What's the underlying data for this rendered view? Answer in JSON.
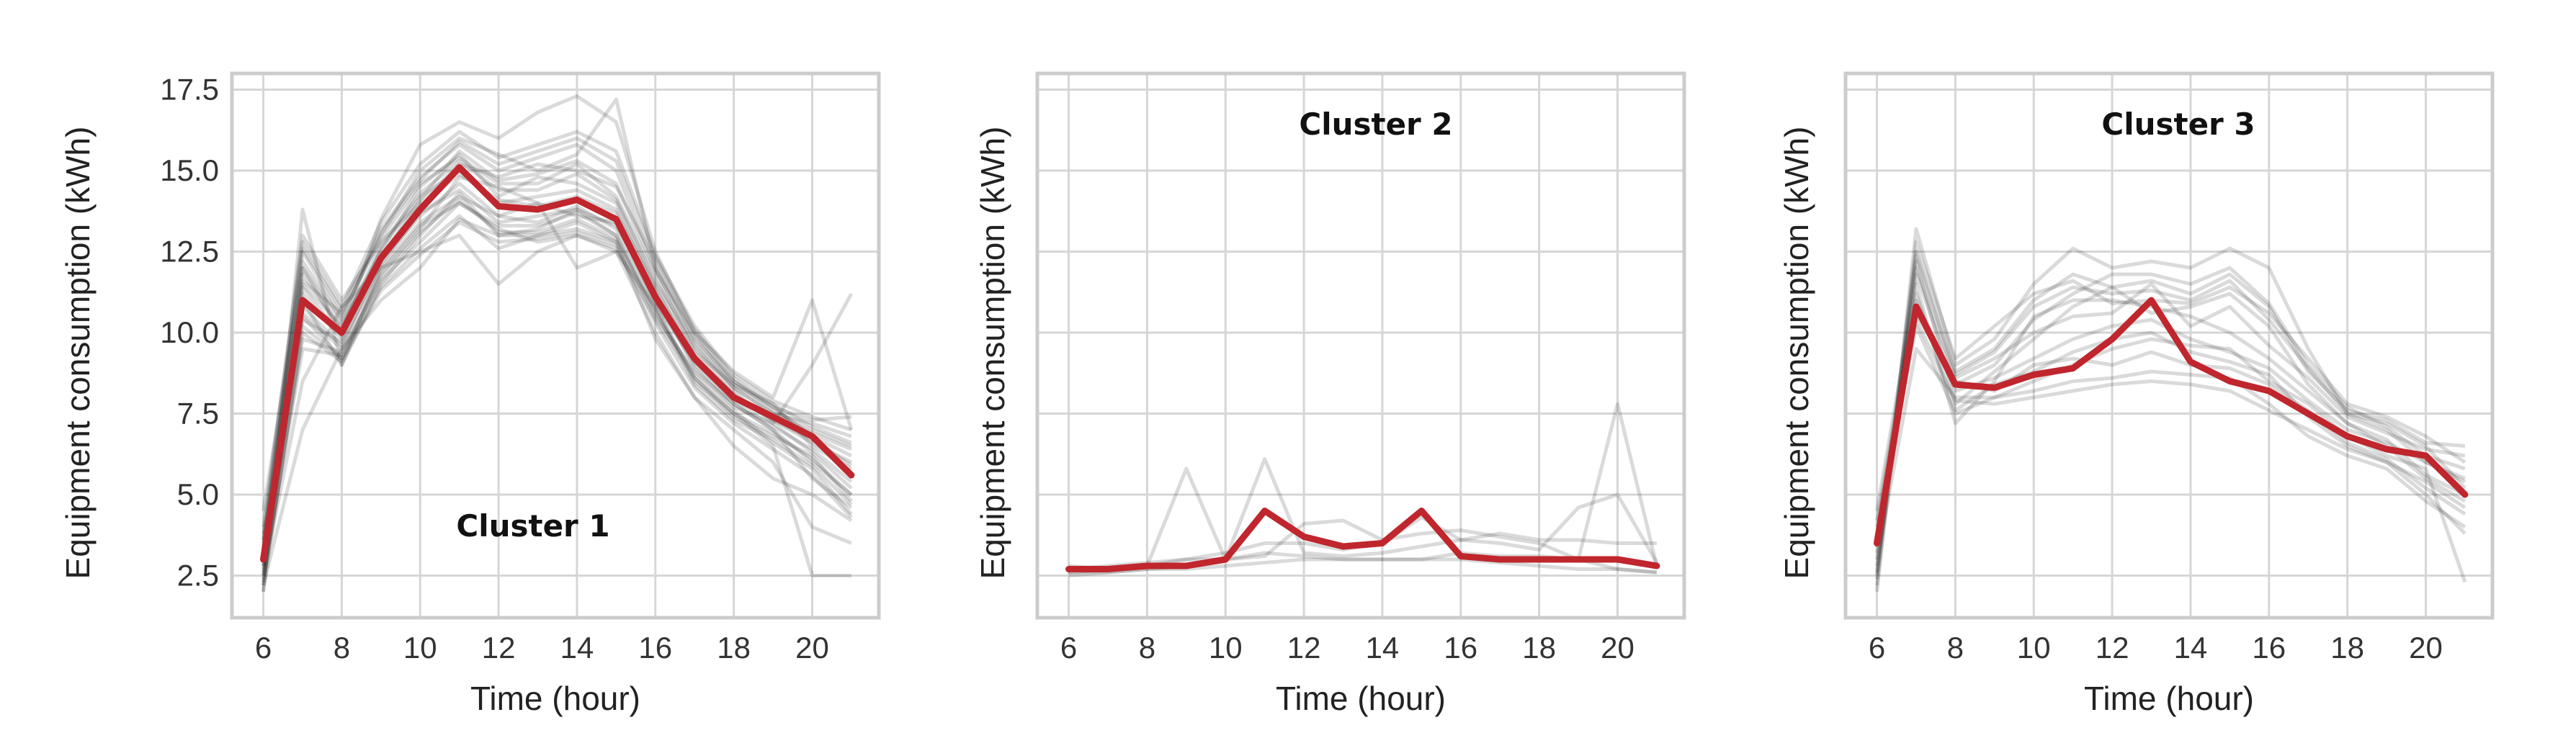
{
  "colors": {
    "centroid": "#c0262d",
    "members": "#1a1a1a",
    "grid": "#d6d6d6",
    "frame": "#cccccc"
  },
  "chart_data": [
    {
      "type": "line",
      "title": "Cluster 1",
      "xlabel": "Time (hour)",
      "ylabel": "Equipment consumption (kWh)",
      "x": [
        6,
        7,
        8,
        9,
        10,
        11,
        12,
        13,
        14,
        15,
        16,
        17,
        18,
        19,
        20,
        21
      ],
      "xlim": [
        5.2,
        21.7
      ],
      "ylim": [
        1.2,
        18.0
      ],
      "xticks": [
        6,
        8,
        10,
        12,
        14,
        16,
        18,
        20
      ],
      "yticks": [
        2.5,
        5.0,
        7.5,
        10.0,
        12.5,
        15.0,
        17.5
      ],
      "ytick_labels": [
        "2.5",
        "5.0",
        "7.5",
        "10.0",
        "12.5",
        "15.0",
        "17.5"
      ],
      "grid": true,
      "series": [
        {
          "role": "centroid",
          "values": [
            3.0,
            11.0,
            10.0,
            12.3,
            13.8,
            15.1,
            13.9,
            13.8,
            14.1,
            13.5,
            11.1,
            9.2,
            8.0,
            7.4,
            6.8,
            5.6
          ]
        },
        {
          "role": "member",
          "values": [
            2.0,
            13.8,
            9.0,
            11.5,
            13.0,
            14.3,
            13.0,
            13.2,
            13.8,
            13.0,
            10.5,
            8.8,
            7.8,
            7.0,
            5.5,
            4.6
          ]
        },
        {
          "role": "member",
          "values": [
            3.5,
            12.5,
            10.5,
            13.0,
            15.0,
            16.0,
            15.5,
            15.0,
            15.5,
            17.2,
            12.0,
            10.0,
            8.5,
            7.8,
            6.5,
            5.8
          ]
        },
        {
          "role": "member",
          "values": [
            2.5,
            8.5,
            10.8,
            12.0,
            12.5,
            13.0,
            11.5,
            12.5,
            13.0,
            12.5,
            10.0,
            8.0,
            7.0,
            6.0,
            4.0,
            3.5
          ]
        },
        {
          "role": "member",
          "values": [
            4.5,
            12.0,
            10.0,
            13.5,
            15.8,
            16.5,
            16.0,
            16.8,
            17.3,
            16.5,
            12.5,
            10.0,
            8.8,
            8.0,
            11.0,
            7.0
          ]
        },
        {
          "role": "member",
          "values": [
            2.8,
            10.5,
            9.2,
            11.8,
            13.2,
            14.8,
            14.5,
            14.0,
            12.0,
            12.5,
            10.8,
            8.5,
            7.5,
            6.5,
            2.5,
            2.5
          ]
        },
        {
          "role": "member",
          "values": [
            3.2,
            11.5,
            10.2,
            12.5,
            14.5,
            15.5,
            14.2,
            14.8,
            14.6,
            14.0,
            11.5,
            9.5,
            8.2,
            7.2,
            9.0,
            11.2
          ]
        },
        {
          "role": "member",
          "values": [
            2.2,
            7.0,
            9.5,
            11.0,
            12.0,
            13.5,
            13.0,
            13.0,
            13.2,
            12.8,
            9.8,
            8.0,
            6.5,
            5.5,
            5.0,
            4.2
          ]
        },
        {
          "role": "member",
          "values": [
            3.8,
            13.0,
            11.0,
            12.8,
            14.0,
            15.2,
            14.8,
            15.2,
            15.0,
            14.5,
            12.2,
            9.8,
            8.5,
            7.6,
            7.0,
            6.5
          ]
        },
        {
          "role": "member",
          "values": [
            2.6,
            10.8,
            9.6,
            12.2,
            13.6,
            14.6,
            13.6,
            13.4,
            13.9,
            13.2,
            11.0,
            9.0,
            7.8,
            7.0,
            6.0,
            5.0
          ]
        },
        {
          "role": "member",
          "values": [
            3.0,
            11.2,
            9.8,
            12.6,
            14.2,
            15.0,
            14.0,
            14.2,
            14.4,
            13.8,
            11.3,
            9.3,
            8.1,
            7.3,
            6.6,
            6.0
          ]
        },
        {
          "role": "member",
          "values": [
            2.4,
            9.8,
            9.4,
            11.6,
            12.8,
            14.0,
            13.2,
            12.8,
            13.0,
            12.6,
            10.4,
            8.6,
            7.4,
            6.8,
            6.2,
            4.8
          ]
        },
        {
          "role": "member",
          "values": [
            3.4,
            12.2,
            10.4,
            13.2,
            14.8,
            15.8,
            15.0,
            15.4,
            15.8,
            15.0,
            12.0,
            9.6,
            8.3,
            7.5,
            7.2,
            6.8
          ]
        },
        {
          "role": "member",
          "values": [
            2.2,
            11.0,
            9.0,
            12.0,
            13.4,
            14.2,
            13.6,
            14.0,
            13.6,
            13.4,
            10.9,
            9.1,
            7.9,
            7.1,
            6.4,
            5.4
          ]
        },
        {
          "role": "member",
          "values": [
            3.6,
            11.6,
            10.6,
            12.9,
            14.6,
            15.4,
            14.6,
            14.6,
            15.2,
            14.2,
            11.8,
            9.4,
            8.4,
            7.7,
            6.8,
            6.2
          ]
        },
        {
          "role": "member",
          "values": [
            2.0,
            10.2,
            9.2,
            11.4,
            12.6,
            13.6,
            12.6,
            13.0,
            13.4,
            12.8,
            10.6,
            8.7,
            7.6,
            6.6,
            5.8,
            4.4
          ]
        },
        {
          "role": "member",
          "values": [
            4.0,
            12.8,
            10.8,
            13.4,
            15.2,
            16.2,
            15.4,
            15.8,
            16.2,
            15.6,
            12.4,
            10.2,
            8.7,
            7.9,
            7.4,
            7.0
          ]
        },
        {
          "role": "member",
          "values": [
            2.8,
            10.4,
            9.7,
            12.1,
            13.7,
            14.4,
            13.4,
            13.6,
            13.8,
            13.3,
            11.2,
            8.9,
            7.7,
            7.2,
            6.3,
            5.2
          ]
        },
        {
          "role": "member",
          "values": [
            3.3,
            11.8,
            10.1,
            12.7,
            14.3,
            15.3,
            14.4,
            14.4,
            14.9,
            14.1,
            11.6,
            9.7,
            8.3,
            7.5,
            6.9,
            6.4
          ]
        },
        {
          "role": "member",
          "values": [
            2.5,
            9.5,
            9.3,
            11.7,
            13.1,
            14.1,
            13.1,
            13.1,
            13.5,
            12.9,
            10.7,
            8.4,
            7.3,
            6.7,
            5.9,
            4.7
          ]
        },
        {
          "role": "member",
          "values": [
            3.1,
            12.0,
            10.3,
            12.4,
            13.9,
            14.9,
            14.1,
            13.9,
            14.2,
            13.7,
            11.4,
            9.2,
            8.0,
            7.3,
            6.7,
            5.9
          ]
        },
        {
          "role": "member",
          "values": [
            2.7,
            11.4,
            9.9,
            12.3,
            14.1,
            15.6,
            14.7,
            14.9,
            15.3,
            14.6,
            11.9,
            9.9,
            8.4,
            7.8,
            7.1,
            6.6
          ]
        },
        {
          "role": "member",
          "values": [
            2.9,
            10.6,
            9.5,
            11.9,
            13.3,
            14.0,
            13.3,
            13.3,
            13.7,
            13.0,
            10.8,
            8.6,
            7.5,
            6.9,
            6.1,
            5.0
          ]
        },
        {
          "role": "member",
          "values": [
            3.6,
            12.6,
            10.7,
            13.1,
            14.7,
            15.9,
            15.2,
            15.6,
            16.0,
            15.3,
            12.3,
            10.1,
            8.6,
            7.7,
            7.3,
            7.4
          ]
        },
        {
          "role": "member",
          "values": [
            2.3,
            10.0,
            9.1,
            11.3,
            12.4,
            13.4,
            12.8,
            12.9,
            13.1,
            12.7,
            10.3,
            8.3,
            7.2,
            6.4,
            5.6,
            4.3
          ]
        }
      ]
    },
    {
      "type": "line",
      "title": "Cluster 2",
      "xlabel": "Time (hour)",
      "ylabel": "Equipment consumption (kWh)",
      "x": [
        6,
        7,
        8,
        9,
        10,
        11,
        12,
        13,
        14,
        15,
        16,
        17,
        18,
        19,
        20,
        21
      ],
      "xlim": [
        5.2,
        21.7
      ],
      "ylim": [
        1.2,
        18.0
      ],
      "xticks": [
        6,
        8,
        10,
        12,
        14,
        16,
        18,
        20
      ],
      "yticks": [
        2.5,
        5.0,
        7.5,
        10.0,
        12.5,
        15.0,
        17.5
      ],
      "ytick_labels": [],
      "grid": true,
      "series": [
        {
          "role": "centroid",
          "values": [
            2.7,
            2.7,
            2.8,
            2.8,
            3.0,
            4.5,
            3.7,
            3.4,
            3.5,
            4.5,
            3.1,
            3.0,
            3.0,
            3.0,
            3.0,
            2.8
          ]
        },
        {
          "role": "member",
          "values": [
            2.8,
            2.7,
            2.8,
            5.8,
            3.0,
            3.2,
            3.1,
            3.0,
            3.0,
            3.0,
            3.2,
            3.1,
            3.1,
            3.0,
            7.8,
            2.8
          ]
        },
        {
          "role": "member",
          "values": [
            2.6,
            2.7,
            2.8,
            3.0,
            3.0,
            6.1,
            3.2,
            3.1,
            3.2,
            3.4,
            3.6,
            3.5,
            3.3,
            4.6,
            5.0,
            2.9
          ]
        },
        {
          "role": "member",
          "values": [
            2.5,
            2.6,
            2.7,
            2.8,
            3.0,
            3.1,
            4.1,
            4.2,
            3.6,
            3.8,
            3.9,
            3.7,
            3.5,
            3.0,
            2.7,
            2.6
          ]
        },
        {
          "role": "member",
          "values": [
            2.7,
            2.8,
            2.9,
            3.0,
            3.2,
            3.5,
            3.5,
            3.3,
            3.5,
            4.3,
            3.6,
            3.8,
            3.6,
            3.6,
            3.5,
            3.5
          ]
        },
        {
          "role": "member",
          "values": [
            2.6,
            2.6,
            2.7,
            2.7,
            2.8,
            2.9,
            3.0,
            3.0,
            3.0,
            3.0,
            3.0,
            2.9,
            2.8,
            2.7,
            2.7,
            2.6
          ]
        }
      ]
    },
    {
      "type": "line",
      "title": "Cluster 3",
      "xlabel": "Time (hour)",
      "ylabel": "Equipment consumption (kWh)",
      "x": [
        6,
        7,
        8,
        9,
        10,
        11,
        12,
        13,
        14,
        15,
        16,
        17,
        18,
        19,
        20,
        21
      ],
      "xlim": [
        5.2,
        21.7
      ],
      "ylim": [
        1.2,
        18.0
      ],
      "xticks": [
        6,
        8,
        10,
        12,
        14,
        16,
        18,
        20
      ],
      "yticks": [
        2.5,
        5.0,
        7.5,
        10.0,
        12.5,
        15.0,
        17.5
      ],
      "ytick_labels": [],
      "grid": true,
      "series": [
        {
          "role": "centroid",
          "values": [
            3.5,
            10.8,
            8.4,
            8.3,
            8.7,
            8.9,
            9.8,
            11.0,
            9.1,
            8.5,
            8.2,
            7.5,
            6.8,
            6.4,
            6.2,
            5.0
          ]
        },
        {
          "role": "member",
          "values": [
            2.0,
            13.2,
            9.0,
            9.8,
            11.5,
            12.6,
            12.0,
            12.2,
            12.0,
            12.6,
            12.0,
            9.5,
            7.5,
            7.0,
            6.0,
            5.5
          ]
        },
        {
          "role": "member",
          "values": [
            4.5,
            11.5,
            7.2,
            8.5,
            10.5,
            11.0,
            11.0,
            10.8,
            10.5,
            10.0,
            9.2,
            8.2,
            7.2,
            6.5,
            5.5,
            4.8
          ]
        },
        {
          "role": "member",
          "values": [
            3.0,
            9.5,
            8.0,
            8.0,
            8.5,
            9.0,
            9.5,
            9.8,
            9.6,
            9.5,
            8.5,
            7.8,
            6.8,
            6.2,
            5.8,
            2.3
          ]
        },
        {
          "role": "member",
          "values": [
            2.5,
            12.5,
            8.8,
            9.5,
            11.0,
            11.8,
            11.4,
            11.6,
            11.2,
            11.8,
            10.8,
            8.8,
            7.6,
            7.3,
            6.6,
            6.5
          ]
        },
        {
          "role": "member",
          "values": [
            3.8,
            10.2,
            7.5,
            8.0,
            8.2,
            8.5,
            8.6,
            8.8,
            8.7,
            8.6,
            7.8,
            6.8,
            6.2,
            5.8,
            4.8,
            4.0
          ]
        },
        {
          "role": "member",
          "values": [
            2.2,
            12.0,
            8.6,
            9.2,
            10.0,
            10.5,
            10.6,
            11.5,
            10.2,
            10.8,
            9.6,
            8.6,
            7.4,
            6.9,
            6.4,
            6.2
          ]
        },
        {
          "role": "member",
          "values": [
            4.0,
            11.0,
            8.2,
            8.6,
            9.2,
            9.8,
            10.2,
            10.4,
            9.8,
            9.4,
            8.9,
            7.9,
            7.0,
            6.6,
            6.0,
            5.4
          ]
        },
        {
          "role": "member",
          "values": [
            2.8,
            12.2,
            7.8,
            8.8,
            9.8,
            10.8,
            11.4,
            10.6,
            10.8,
            11.2,
            10.2,
            8.4,
            7.2,
            6.7,
            5.6,
            5.0
          ]
        },
        {
          "role": "member",
          "values": [
            3.4,
            10.6,
            8.5,
            8.2,
            9.0,
            9.2,
            9.0,
            9.4,
            9.0,
            8.9,
            8.4,
            7.6,
            6.6,
            6.1,
            5.2,
            4.4
          ]
        },
        {
          "role": "member",
          "values": [
            2.4,
            12.8,
            9.2,
            10.2,
            11.2,
            11.6,
            10.9,
            11.0,
            10.9,
            11.4,
            10.6,
            9.2,
            7.8,
            7.4,
            6.8,
            6.0
          ]
        },
        {
          "role": "member",
          "values": [
            4.2,
            11.2,
            7.6,
            8.4,
            8.8,
            9.4,
            9.8,
            10.0,
            9.4,
            9.1,
            8.7,
            7.4,
            6.5,
            6.0,
            5.4,
            4.6
          ]
        },
        {
          "role": "member",
          "values": [
            2.6,
            11.8,
            8.4,
            9.0,
            10.4,
            11.2,
            11.8,
            11.8,
            11.5,
            12.0,
            10.9,
            9.0,
            7.7,
            7.1,
            6.2,
            5.8
          ]
        },
        {
          "role": "member",
          "values": [
            3.6,
            10.4,
            7.9,
            7.8,
            8.0,
            8.2,
            8.4,
            8.5,
            8.4,
            8.2,
            7.6,
            7.0,
            6.4,
            6.0,
            5.0,
            3.8
          ]
        },
        {
          "role": "member",
          "values": [
            3.2,
            12.4,
            8.7,
            9.4,
            10.8,
            11.4,
            11.2,
            11.3,
            11.0,
            11.6,
            10.4,
            8.9,
            7.5,
            7.2,
            6.5,
            5.2
          ]
        }
      ]
    }
  ]
}
